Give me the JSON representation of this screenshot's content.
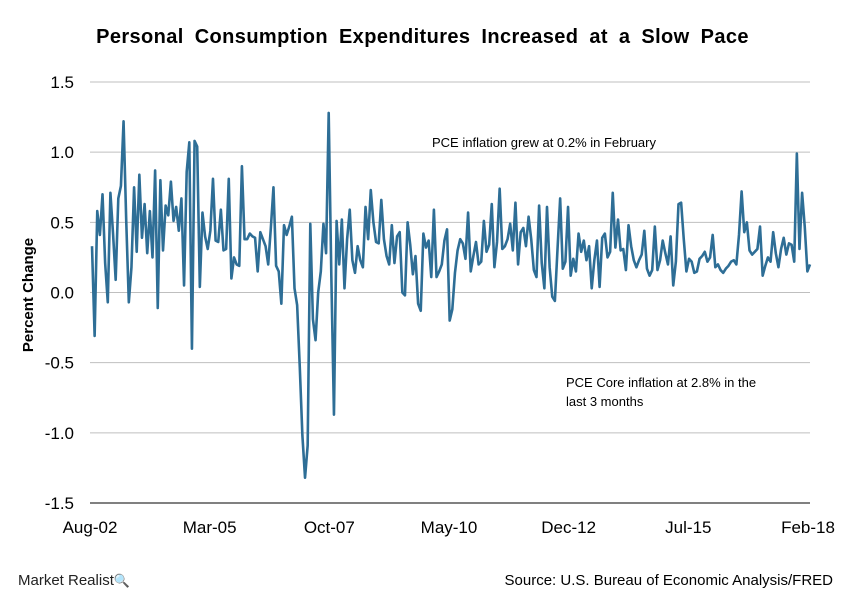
{
  "chart_data": {
    "type": "line",
    "title": "Personal Consumption Expenditures Increased at a Slow Pace",
    "ylabel": "Percent Change",
    "xlabel": "",
    "ylim": [
      -1.5,
      1.5
    ],
    "yticks": [
      "1.5",
      "1.0",
      "0.5",
      "0.0",
      "-0.5",
      "-1.0",
      "-1.5"
    ],
    "ytick_values": [
      1.5,
      1.0,
      0.5,
      0.0,
      -0.5,
      -1.0,
      -1.5
    ],
    "xticks": [
      "Aug-02",
      "Mar-05",
      "Oct-07",
      "May-10",
      "Dec-12",
      "Jul-15",
      "Feb-18"
    ],
    "grid": "horizontal",
    "line_color": "#2e6e96",
    "series": [
      {
        "values": [
          0.33,
          -0.31,
          0.58,
          0.41,
          0.7,
          0.21,
          -0.07,
          0.71,
          0.42,
          0.09,
          0.67,
          0.76,
          1.22,
          0.52,
          -0.07,
          0.18,
          0.75,
          0.29,
          0.84,
          0.39,
          0.63,
          0.28,
          0.58,
          0.25,
          0.87,
          -0.11,
          0.8,
          0.3,
          0.62,
          0.55,
          0.79,
          0.51,
          0.61,
          0.44,
          0.67,
          0.05,
          0.86,
          1.07,
          -0.4,
          1.08,
          1.04,
          0.04,
          0.57,
          0.4,
          0.31,
          0.44,
          0.81,
          0.37,
          0.36,
          0.59,
          0.3,
          0.31,
          0.81,
          0.1,
          0.25,
          0.2,
          0.19,
          0.9,
          0.38,
          0.38,
          0.42,
          0.4,
          0.39,
          0.15,
          0.43,
          0.38,
          0.33,
          0.2,
          0.46,
          0.75,
          0.19,
          0.15,
          -0.08,
          0.48,
          0.41,
          0.47,
          0.54,
          0.03,
          -0.09,
          -0.53,
          -1.02,
          -1.32,
          -1.09,
          0.49,
          -0.19,
          -0.34,
          0.0,
          0.15,
          0.49,
          0.28,
          1.28,
          0.12,
          -0.87,
          0.51,
          0.2,
          0.52,
          0.03,
          0.38,
          0.59,
          0.23,
          0.14,
          0.33,
          0.23,
          0.18,
          0.61,
          0.38,
          0.73,
          0.5,
          0.36,
          0.35,
          0.66,
          0.38,
          0.26,
          0.2,
          0.48,
          0.21,
          0.4,
          0.43,
          0.0,
          -0.02,
          0.5,
          0.34,
          0.13,
          0.26,
          -0.08,
          -0.13,
          0.42,
          0.32,
          0.37,
          0.11,
          0.59,
          0.11,
          0.15,
          0.2,
          0.37,
          0.45,
          -0.2,
          -0.12,
          0.14,
          0.3,
          0.38,
          0.35,
          0.24,
          0.57,
          0.15,
          0.26,
          0.36,
          0.2,
          0.22,
          0.51,
          0.29,
          0.34,
          0.63,
          0.18,
          0.36,
          0.74,
          0.31,
          0.33,
          0.38,
          0.49,
          0.3,
          0.64,
          0.2,
          0.43,
          0.46,
          0.33,
          0.54,
          0.38,
          0.16,
          0.11,
          0.62,
          0.21,
          0.03,
          0.61,
          0.18,
          -0.03,
          -0.06,
          0.31,
          0.67,
          0.17,
          0.22,
          0.61,
          0.12,
          0.24,
          0.15,
          0.42,
          0.29,
          0.37,
          0.23,
          0.33,
          0.03,
          0.23,
          0.37,
          0.04,
          0.39,
          0.42,
          0.25,
          0.29,
          0.71,
          0.32,
          0.52,
          0.3,
          0.31,
          0.16,
          0.48,
          0.33,
          0.23,
          0.18,
          0.23,
          0.27,
          0.44,
          0.17,
          0.12,
          0.16,
          0.47,
          0.16,
          0.23,
          0.37,
          0.28,
          0.2,
          0.4,
          0.05,
          0.22,
          0.63,
          0.64,
          0.38,
          0.15,
          0.24,
          0.22,
          0.14,
          0.15,
          0.24,
          0.26,
          0.29,
          0.22,
          0.25,
          0.41,
          0.18,
          0.2,
          0.16,
          0.14,
          0.17,
          0.19,
          0.22,
          0.23,
          0.2,
          0.41,
          0.72,
          0.43,
          0.5,
          0.3,
          0.27,
          0.29,
          0.31,
          0.47,
          0.12,
          0.19,
          0.25,
          0.22,
          0.43,
          0.28,
          0.18,
          0.31,
          0.39,
          0.27,
          0.35,
          0.34,
          0.22,
          0.99,
          0.31,
          0.71,
          0.47,
          0.15,
          0.2
        ]
      }
    ],
    "annotations": [
      "PCE inflation grew at 0.2% in February",
      "PCE Core inflation at 2.8% in the",
      "last 3 months"
    ]
  },
  "footer": {
    "brand": "Market Realist",
    "brand_icon": "magnifier-icon",
    "source": "Source: U.S. Bureau of Economic Analysis/FRED"
  }
}
